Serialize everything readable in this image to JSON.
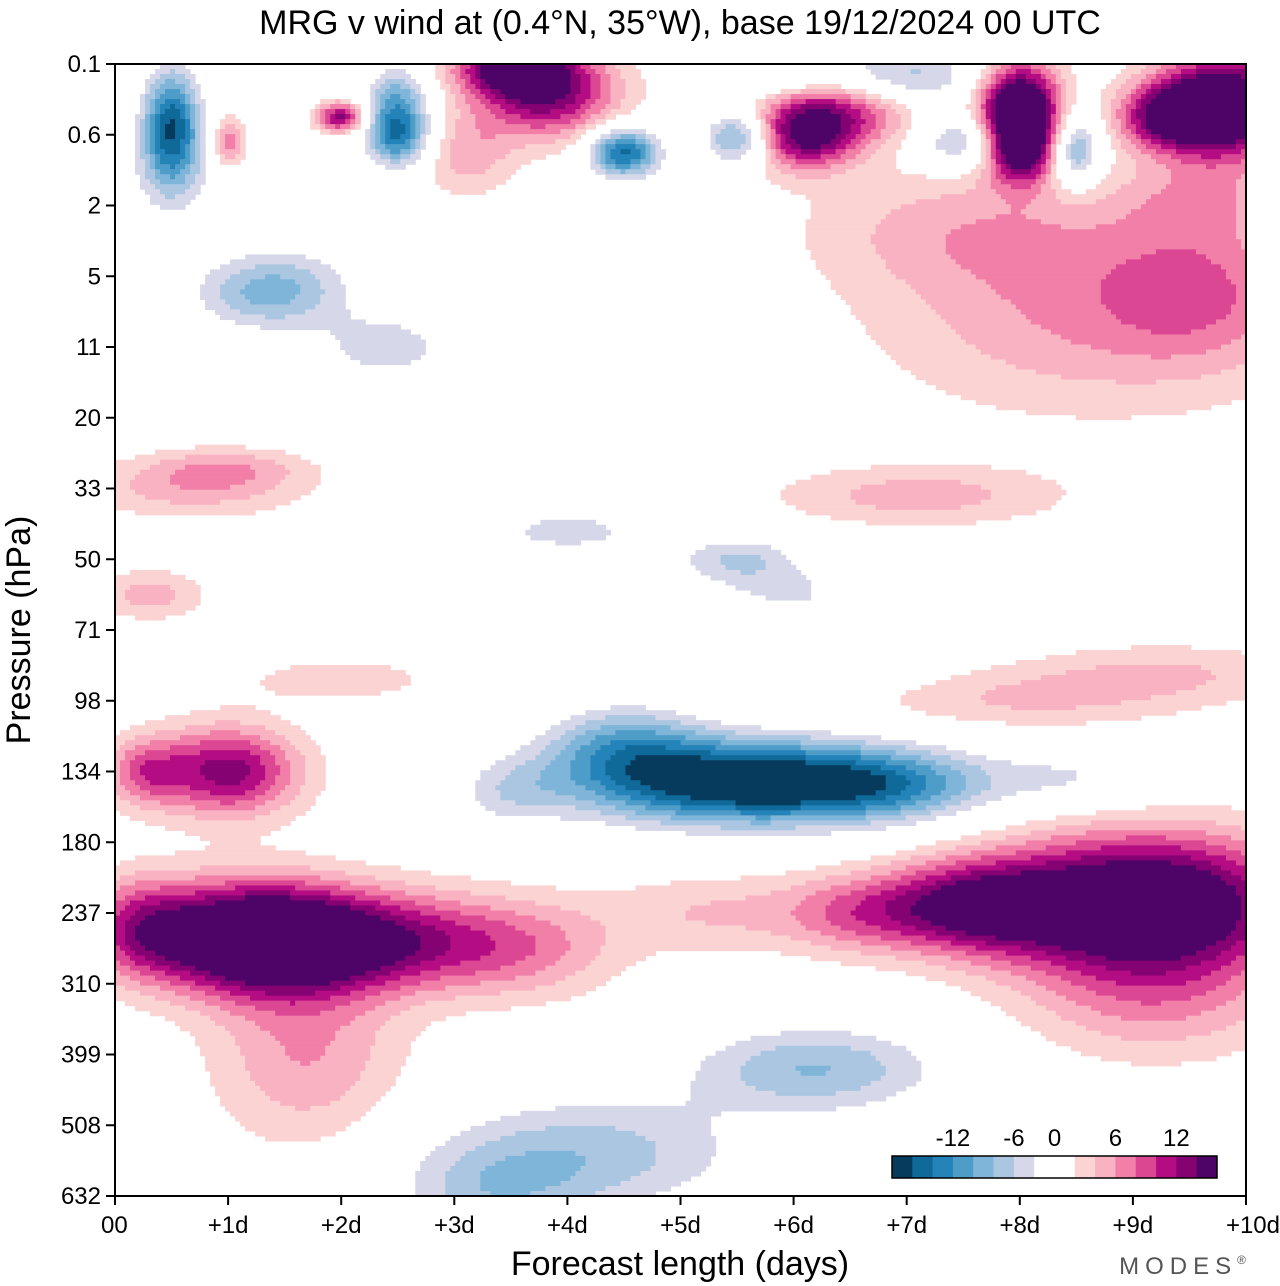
{
  "chart_data": {
    "type": "contour",
    "title": "MRG v wind at (0.4°N, 35°W),  base 19/12/2024  00 UTC",
    "xlabel": "Forecast length (days)",
    "ylabel": "Pressure (hPa)",
    "x_tick_labels": [
      "00",
      "+1d",
      "+2d",
      "+3d",
      "+4d",
      "+5d",
      "+6d",
      "+7d",
      "+8d",
      "+9d",
      "+10d"
    ],
    "x_ticks_days": [
      0,
      1,
      2,
      3,
      4,
      5,
      6,
      7,
      8,
      9,
      10
    ],
    "y_tick_labels": [
      "0.1",
      "0.6",
      "2",
      "5",
      "11",
      "20",
      "33",
      "50",
      "71",
      "98",
      "134",
      "180",
      "237",
      "310",
      "399",
      "508",
      "632"
    ],
    "xlim": [
      0,
      10
    ],
    "y_axis": "pressure levels (top 0.1 hPa, bottom 632 hPa), equally spaced ticks",
    "colorbar": {
      "tick_labels": [
        "-12",
        "-6",
        "0",
        "6",
        "12"
      ],
      "levels": [
        -16,
        -14,
        -12,
        -10,
        -8,
        -6,
        -4,
        -2,
        2,
        4,
        6,
        8,
        10,
        12,
        14,
        16
      ],
      "colors": [
        "#073b5e",
        "#0f6a9a",
        "#2483b8",
        "#4e9dc8",
        "#7eb5d8",
        "#aac6e0",
        "#d6d8ea",
        "#ffffff",
        "#ffffff",
        "#fbd3d3",
        "#f9b2c1",
        "#f27fa8",
        "#dc4793",
        "#b40c82",
        "#850273",
        "#4d0466"
      ]
    },
    "features": [
      {
        "sign": "positive",
        "level": 16,
        "day_range": [
          0.4,
          2.0
        ],
        "hPa_center": 260,
        "note": "strong southerly maximum near 237-310 hPa"
      },
      {
        "sign": "positive",
        "level": 16,
        "day_range": [
          7.4,
          10.0
        ],
        "hPa_center": 237,
        "note": "strong maximum 180-310 hPa late in forecast"
      },
      {
        "sign": "positive",
        "level": 12,
        "day_range": [
          0.8,
          1.8
        ],
        "hPa_center": 134
      },
      {
        "sign": "negative",
        "level": -16,
        "day_range": [
          4.3,
          6.9
        ],
        "hPa_center": 134,
        "note": "northerly minimum near 134 hPa"
      },
      {
        "sign": "negative",
        "level": -6,
        "day_range": [
          2.2,
          7.0
        ],
        "hPa_center": 480,
        "note": "weak northerly region 399-632 hPa"
      },
      {
        "sign": "positive",
        "level": 16,
        "day_range": [
          7.7,
          10.0
        ],
        "hPa_center": 0.6,
        "note": "upper stratosphere maxima"
      },
      {
        "sign": "negative",
        "level": -14,
        "day_range": [
          0.3,
          0.8
        ],
        "hPa_center": 0.6
      }
    ]
  },
  "branding": {
    "text": "MODES",
    "mark": "®"
  }
}
